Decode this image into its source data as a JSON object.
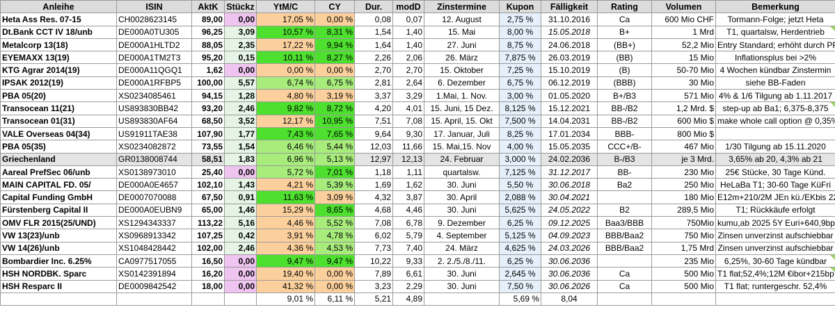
{
  "colors": {
    "header_bg": "#dcdcdc",
    "pale_green": "#e6f4e6",
    "pink": "#f0c4f0",
    "orange": "#fcd09c",
    "green": "#4ee02e",
    "lime": "#a8ec7c",
    "pale_blue": "#e6f0fa",
    "grey_row": "#e4e4e4",
    "white": "#ffffff"
  },
  "headers": [
    "Anleihe",
    "ISIN",
    "AktK",
    "Stückz",
    "YtM/C",
    "CY",
    "Dur.",
    "modD",
    "Zinstermine",
    "Kupon",
    "Fälligkeit",
    "Rating",
    "Volumen",
    "Bemerkung"
  ],
  "rows": [
    {
      "anleihe": "Heta Ass Res. 07-15",
      "isin": "CH0028623145",
      "aktk": "89,00",
      "stueckz": "0,00",
      "ytm": "17,05 %",
      "cy": "0,00 %",
      "dur": "0,08",
      "modd": "0,07",
      "zins": "12. August",
      "kupon": "2,75 %",
      "faellig": "31.10.2016",
      "rating": "Ca",
      "volumen": "600 Mio CHF",
      "bem": "Tormann-Folge; jetzt Heta",
      "stk_bg": "pink",
      "ytm_bg": "orange",
      "cy_bg": "orange",
      "row_bg": "white",
      "faellig_italic": false,
      "comment": false
    },
    {
      "anleihe": "Dt.Bank CCT IV 18/unb",
      "isin": "DE000A0TU305",
      "aktk": "96,25",
      "stueckz": "3,09",
      "ytm": "10,57 %",
      "cy": "8,31 %",
      "dur": "1,54",
      "modd": "1,40",
      "zins": "15. Mai",
      "kupon": "8,00 %",
      "faellig": "15.05.2018",
      "rating": "B+",
      "volumen": "1 Mrd",
      "bem": "T1, quartalsw, Herdentrieb",
      "stk_bg": "pale_green",
      "ytm_bg": "green",
      "cy_bg": "green",
      "row_bg": "white",
      "faellig_italic": true,
      "comment": true
    },
    {
      "anleihe": "Metalcorp 13(18)",
      "isin": "DE000A1HLTD2",
      "aktk": "88,05",
      "stueckz": "2,35",
      "ytm": "17,22 %",
      "cy": "9,94 %",
      "dur": "1,64",
      "modd": "1,40",
      "zins": "27. Juni",
      "kupon": "8,75 %",
      "faellig": "24.06.2018",
      "rating": "(BB+)",
      "volumen": "52,2 Mio",
      "bem": "Entry Standard; erhöht durch PP",
      "stk_bg": "pale_green",
      "ytm_bg": "orange",
      "cy_bg": "green",
      "row_bg": "white",
      "faellig_italic": false,
      "comment": false
    },
    {
      "anleihe": "EYEMAXX 13(19)",
      "isin": "DE000A1TM2T3",
      "aktk": "95,20",
      "stueckz": "0,15",
      "ytm": "10,11 %",
      "cy": "8,27 %",
      "dur": "2,26",
      "modd": "2,06",
      "zins": "26. März",
      "kupon": "7,875 %",
      "faellig": "26.03.2019",
      "rating": "(BB)",
      "volumen": "15 Mio",
      "bem": "Inflationsplus bei >2%",
      "stk_bg": "pale_green",
      "ytm_bg": "green",
      "cy_bg": "green",
      "row_bg": "white",
      "faellig_italic": false,
      "comment": false
    },
    {
      "anleihe": "KTG Agrar 2014(19)",
      "isin": "DE000A11QGQ1",
      "aktk": "1,62",
      "stueckz": "0,00",
      "ytm": "0,00 %",
      "cy": "0,00 %",
      "dur": "2,70",
      "modd": "2,70",
      "zins": "15. Oktober",
      "kupon": "7,25 %",
      "faellig": "15.10.2019",
      "rating": "(B)",
      "volumen": "50-70 Mio",
      "bem": "4 Wochen kündbar Zinstermin",
      "stk_bg": "pink",
      "ytm_bg": "orange",
      "cy_bg": "orange",
      "row_bg": "white",
      "faellig_italic": false,
      "comment": false
    },
    {
      "anleihe": "IPSAK 2012(19)",
      "isin": "DE000A1RFBP5",
      "aktk": "100,00",
      "stueckz": "5,57",
      "ytm": "6,74 %",
      "cy": "6,75 %",
      "dur": "2,81",
      "modd": "2,64",
      "zins": "6. Dezember",
      "kupon": "6,75 %",
      "faellig": "06.12.2019",
      "rating": "(BBB)",
      "volumen": "30 Mio",
      "bem": "siehe BB-Faden",
      "stk_bg": "pale_green",
      "ytm_bg": "lime",
      "cy_bg": "lime",
      "row_bg": "white",
      "faellig_italic": false,
      "comment": false
    },
    {
      "anleihe": "PBA 05(20)",
      "isin": "XS0234085461",
      "aktk": "94,15",
      "stueckz": "1,28",
      "ytm": "4,80 %",
      "cy": "3,19 %",
      "dur": "3,37",
      "modd": "3,29",
      "zins": "1.Mai, 1. Nov.",
      "kupon": "3,00 %",
      "faellig": "01.05.2020",
      "rating": "B+/B3",
      "volumen": "571 Mio",
      "bem": "4% & 1/6 Tilgung ab 1.11.2017",
      "stk_bg": "pale_green",
      "ytm_bg": "orange",
      "cy_bg": "orange",
      "row_bg": "white",
      "faellig_italic": false,
      "comment": false
    },
    {
      "anleihe": "Transocean 11(21)",
      "isin": "US893830BB42",
      "aktk": "93,20",
      "stueckz": "2,46",
      "ytm": "9,82 %",
      "cy": "8,72 %",
      "dur": "4,20",
      "modd": "4,01",
      "zins": "15. Juni, 15 Dez.",
      "kupon": "8,125 %",
      "faellig": "15.12.2021",
      "rating": "BB-/B2",
      "volumen": "1,2 Mrd. $",
      "bem": "step-up ab Ba1; 6,375-8,375",
      "stk_bg": "pale_green",
      "ytm_bg": "green",
      "cy_bg": "green",
      "row_bg": "white",
      "faellig_italic": false,
      "comment": true
    },
    {
      "anleihe": "Transocean 01(31)",
      "isin": "US893830AF64",
      "aktk": "68,50",
      "stueckz": "3,52",
      "ytm": "12,17 %",
      "cy": "10,95 %",
      "dur": "7,51",
      "modd": "7,08",
      "zins": "15. April, 15. Okt",
      "kupon": "7,500 %",
      "faellig": "14.04.2031",
      "rating": "BB-/B2",
      "volumen": "600 Mio $",
      "bem": "make whole call option @ 0,35%",
      "stk_bg": "pale_green",
      "ytm_bg": "orange",
      "cy_bg": "green",
      "row_bg": "white",
      "faellig_italic": false,
      "comment": false
    },
    {
      "anleihe": "VALE Overseas 04(34)",
      "isin": "US91911TAE38",
      "aktk": "107,90",
      "stueckz": "1,77",
      "ytm": "7,43 %",
      "cy": "7,65 %",
      "dur": "9,64",
      "modd": "9,30",
      "zins": "17. Januar, Juli",
      "kupon": "8,25 %",
      "faellig": "17.01.2034",
      "rating": "BBB-",
      "volumen": "800 Mio $",
      "bem": "",
      "stk_bg": "pale_green",
      "ytm_bg": "green",
      "cy_bg": "green",
      "row_bg": "white",
      "faellig_italic": false,
      "comment": false
    },
    {
      "anleihe": "PBA 05(35)",
      "isin": "XS0234082872",
      "aktk": "73,55",
      "stueckz": "1,54",
      "ytm": "6,46 %",
      "cy": "5,44 %",
      "dur": "12,03",
      "modd": "11,66",
      "zins": "15. Mai,15. Nov",
      "kupon": "4,00 %",
      "faellig": "15.05.2035",
      "rating": "CCC+/B-",
      "volumen": "467 Mio",
      "bem": "1/30 Tilgung ab 15.11.2020",
      "stk_bg": "pale_green",
      "ytm_bg": "lime",
      "cy_bg": "lime",
      "row_bg": "white",
      "faellig_italic": false,
      "comment": false
    },
    {
      "anleihe": "Griechenland",
      "isin": "GR0138008744",
      "aktk": "58,51",
      "stueckz": "1,83",
      "ytm": "6,96 %",
      "cy": "5,13 %",
      "dur": "12,97",
      "modd": "12,13",
      "zins": "24. Februar",
      "kupon": "3,000 %",
      "faellig": "24.02.2036",
      "rating": "B-/B3",
      "volumen": "je 3 Mrd.",
      "bem": "3,65% ab 20, 4,3% ab 21",
      "stk_bg": "pale_green",
      "ytm_bg": "lime",
      "cy_bg": "lime",
      "row_bg": "grey_row",
      "faellig_italic": false,
      "comment": false
    },
    {
      "anleihe": "Aareal PrefSec 06/unb",
      "isin": "XS0138973010",
      "aktk": "25,40",
      "stueckz": "0,00",
      "ytm": "5,72 %",
      "cy": "7,01 %",
      "dur": "1,18",
      "modd": "1,11",
      "zins": "quartalsw.",
      "kupon": "7,125 %",
      "faellig": "31.12.2017",
      "rating": "BB-",
      "volumen": "230 Mio",
      "bem": "25€ Stücke, 30 Tage Künd.",
      "stk_bg": "pink",
      "ytm_bg": "lime",
      "cy_bg": "green",
      "row_bg": "white",
      "faellig_italic": true,
      "comment": false
    },
    {
      "anleihe": "MAIN CAPITAL FD. 05/",
      "isin": "DE000A0E4657",
      "aktk": "102,10",
      "stueckz": "1,43",
      "ytm": "4,21 %",
      "cy": "5,39 %",
      "dur": "1,69",
      "modd": "1,62",
      "zins": "30. Juni",
      "kupon": "5,50 %",
      "faellig": "30.06.2018",
      "rating": "Ba2",
      "volumen": "250 Mio",
      "bem": "HeLaBa T1; 30-60 Tage KüFri",
      "stk_bg": "pale_green",
      "ytm_bg": "orange",
      "cy_bg": "lime",
      "row_bg": "white",
      "faellig_italic": true,
      "comment": false
    },
    {
      "anleihe": "Capital Funding GmbH",
      "isin": "DE0007070088",
      "aktk": "67,50",
      "stueckz": "0,91",
      "ytm": "11,63 %",
      "cy": "3,09 %",
      "dur": "4,32",
      "modd": "3,87",
      "zins": "30. April",
      "kupon": "2,088 %",
      "faellig": "30.04.2021",
      "rating": "",
      "volumen": "180 Mio",
      "bem": "E12m+210/2M JEn kü./EKbis 22",
      "stk_bg": "pale_green",
      "ytm_bg": "green",
      "cy_bg": "orange",
      "row_bg": "white",
      "faellig_italic": true,
      "comment": false
    },
    {
      "anleihe": "Fürstenberg Capital II",
      "isin": "DE000A0EUBN9",
      "aktk": "65,00",
      "stueckz": "1,46",
      "ytm": "15,29 %",
      "cy": "8,65 %",
      "dur": "4,68",
      "modd": "4,46",
      "zins": "30. Juni",
      "kupon": "5,625 %",
      "faellig": "24.05.2022",
      "rating": "B2",
      "volumen": "289,5 Mio",
      "bem": "T1; Rückkäufe erfolgt",
      "stk_bg": "pale_green",
      "ytm_bg": "orange",
      "cy_bg": "green",
      "row_bg": "white",
      "faellig_italic": true,
      "comment": false
    },
    {
      "anleihe": "OMV FLR 2015(25/UND)",
      "isin": "XS1294343337",
      "aktk": "113,22",
      "stueckz": "5,16",
      "ytm": "4,46 %",
      "cy": "5,52 %",
      "dur": "7,08",
      "modd": "6,78",
      "zins": "9. Dezember",
      "kupon": "6,25 %",
      "faellig": "09.12.2025",
      "rating": "Baa3/BBB",
      "volumen": "750Mio",
      "bem": "kumu,ab 2025 5Y Euri+640,9bp",
      "stk_bg": "pale_green",
      "ytm_bg": "orange",
      "cy_bg": "lime",
      "row_bg": "white",
      "faellig_italic": true,
      "comment": false
    },
    {
      "anleihe": "VW 13(23)/unb",
      "isin": "XS0968913342",
      "aktk": "107,25",
      "stueckz": "0,42",
      "ytm": "3,91 %",
      "cy": "4,78 %",
      "dur": "6,02",
      "modd": "5,79",
      "zins": "4. September",
      "kupon": "5,125 %",
      "faellig": "04.09.2023",
      "rating": "BBB/Baa2",
      "volumen": "750 Mio",
      "bem": "Zinsen unverzinst aufschiebbar",
      "stk_bg": "pale_green",
      "ytm_bg": "orange",
      "cy_bg": "lime",
      "row_bg": "white",
      "faellig_italic": true,
      "comment": false
    },
    {
      "anleihe": "VW 14(26)/unb",
      "isin": "XS1048428442",
      "aktk": "102,00",
      "stueckz": "2,46",
      "ytm": "4,36 %",
      "cy": "4,53 %",
      "dur": "7,73",
      "modd": "7,40",
      "zins": "24. März",
      "kupon": "4,625 %",
      "faellig": "24.03.2026",
      "rating": "BBB/Baa2",
      "volumen": "1,75 Mrd",
      "bem": "Zinsen unverzinst aufschiebbar",
      "stk_bg": "pale_green",
      "ytm_bg": "orange",
      "cy_bg": "lime",
      "row_bg": "white",
      "faellig_italic": true,
      "comment": false
    },
    {
      "anleihe": "Bombardier Inc. 6.25%",
      "isin": "CA0977517055",
      "aktk": "16,50",
      "stueckz": "0,00",
      "ytm": "9,47 %",
      "cy": "9,47 %",
      "dur": "10,22",
      "modd": "9,33",
      "zins": "2. 2./5./8./11.",
      "kupon": "6,25 %",
      "faellig": "30.06.2036",
      "rating": "",
      "volumen": "235 Mio",
      "bem": "6,25%, 30-60 Tage kündbar",
      "stk_bg": "pink",
      "ytm_bg": "green",
      "cy_bg": "green",
      "row_bg": "white",
      "faellig_italic": true,
      "comment": true
    },
    {
      "anleihe": "HSH NORDBK. Sparc",
      "isin": "XS0142391894",
      "aktk": "16,20",
      "stueckz": "0,00",
      "ytm": "19,40 %",
      "cy": "0,00 %",
      "dur": "7,89",
      "modd": "6,61",
      "zins": "30. Juni",
      "kupon": "2,645 %",
      "faellig": "30.06.2036",
      "rating": "Ca",
      "volumen": "500 Mio",
      "bem": "T1 flat;52,4%;12M €ibor+215bp",
      "stk_bg": "pink",
      "ytm_bg": "orange",
      "cy_bg": "orange",
      "row_bg": "white",
      "faellig_italic": true,
      "comment": true
    },
    {
      "anleihe": "HSH Resparc II",
      "isin": "DE0009842542",
      "aktk": "18,00",
      "stueckz": "0,00",
      "ytm": "41,32 %",
      "cy": "0,00 %",
      "dur": "3,23",
      "modd": "2,29",
      "zins": "30. Juni",
      "kupon": "7,50 %",
      "faellig": "30.06.2026",
      "rating": "Ca",
      "volumen": "500 Mio",
      "bem": "T1 flat; runtergeschr. 52,4%",
      "stk_bg": "pink",
      "ytm_bg": "orange",
      "cy_bg": "orange",
      "row_bg": "white",
      "faellig_italic": true,
      "comment": false
    }
  ],
  "summary": {
    "ytm": "9,01 %",
    "cy": "6,11 %",
    "dur": "5,21",
    "modd": "4,89",
    "kupon": "5,69 %",
    "faellig": "8,04"
  }
}
